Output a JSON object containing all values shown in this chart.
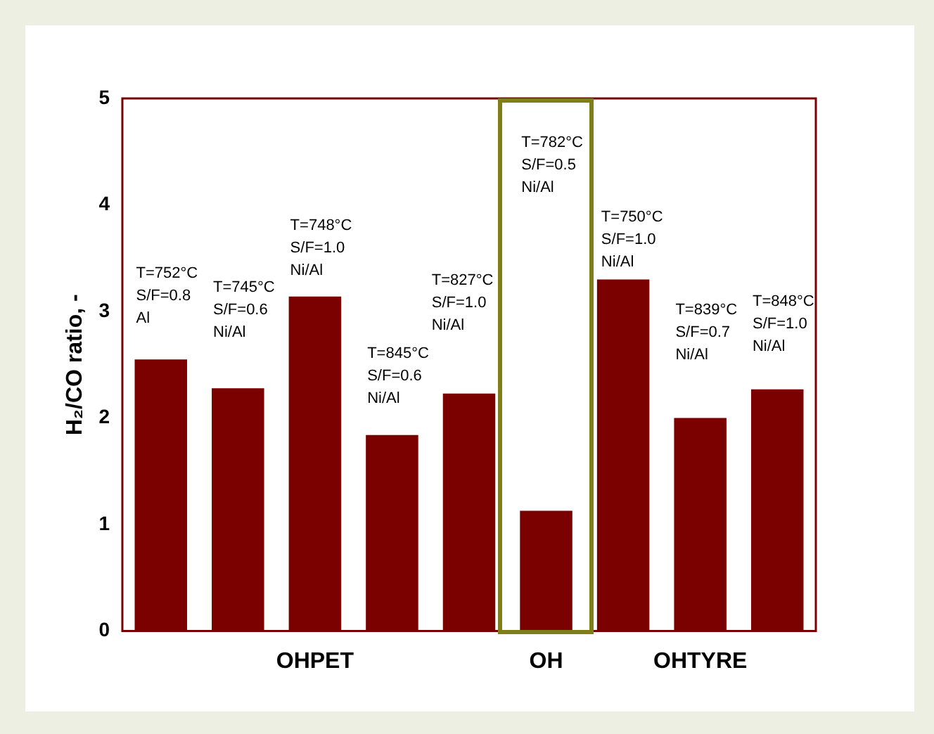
{
  "chart_data": {
    "type": "bar",
    "ylabel": "H₂/CO ratio, -",
    "categories": [
      null,
      null,
      "OHPET",
      null,
      null,
      "OH",
      null,
      "OHTYRE",
      null
    ],
    "values": [
      2.55,
      2.28,
      3.14,
      1.84,
      2.23,
      1.13,
      3.3,
      2.0,
      2.27
    ],
    "color": "#7b0000",
    "ylim": [
      0,
      5
    ],
    "yticks": [
      0,
      1,
      2,
      3,
      4,
      5
    ],
    "grid": false,
    "legend": false,
    "annotations": [
      "T=752°C\nS/F=0.8\nAl",
      "T=745°C\nS/F=0.6\nNi/Al",
      "T=748°C\nS/F=1.0\nNi/Al",
      "T=845°C\nS/F=0.6\nNi/Al",
      "T=827°C\nS/F=1.0\nNi/Al",
      "T=782°C\nS/F=0.5\nNi/Al",
      "T=750°C\nS/F=1.0\nNi/Al",
      "T=839°C\nS/F=0.7\nNi/Al",
      "T=848°C\nS/F=1.0\nNi/Al"
    ]
  }
}
